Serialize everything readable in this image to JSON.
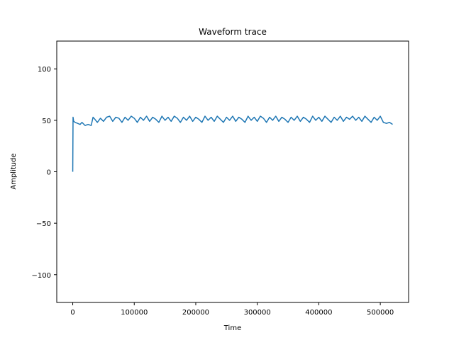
{
  "chart_data": {
    "type": "line",
    "title": "Waveform trace",
    "xlabel": "Time",
    "ylabel": "Amplitude",
    "xlim": [
      -26000,
      546000
    ],
    "ylim": [
      -127,
      127
    ],
    "grid": false,
    "x_ticks": [
      0,
      100000,
      200000,
      300000,
      400000,
      500000
    ],
    "x_tick_labels": [
      "0",
      "100000",
      "200000",
      "300000",
      "400000",
      "500000"
    ],
    "y_ticks": [
      -100,
      -50,
      0,
      50,
      100
    ],
    "y_tick_labels": [
      "−100",
      "−50",
      "0",
      "50",
      "100"
    ],
    "series": [
      {
        "color": "#1f77b4",
        "x": [
          0,
          500,
          1500,
          4000,
          8000,
          12000,
          15000,
          20000,
          25000,
          30000,
          33000,
          36000,
          40000,
          45000,
          50000,
          55000,
          60000,
          65000,
          70000,
          75000,
          80000,
          85000,
          90000,
          95000,
          100000,
          105000,
          110000,
          115000,
          120000,
          125000,
          130000,
          135000,
          140000,
          145000,
          150000,
          155000,
          160000,
          165000,
          170000,
          175000,
          180000,
          185000,
          190000,
          195000,
          200000,
          205000,
          210000,
          215000,
          220000,
          225000,
          230000,
          235000,
          240000,
          245000,
          250000,
          255000,
          260000,
          265000,
          270000,
          275000,
          280000,
          285000,
          290000,
          295000,
          300000,
          305000,
          310000,
          315000,
          320000,
          325000,
          330000,
          335000,
          340000,
          345000,
          350000,
          355000,
          360000,
          365000,
          370000,
          375000,
          380000,
          385000,
          390000,
          395000,
          400000,
          405000,
          410000,
          415000,
          420000,
          425000,
          430000,
          435000,
          440000,
          445000,
          450000,
          455000,
          460000,
          465000,
          470000,
          475000,
          480000,
          485000,
          490000,
          495000,
          500000,
          505000,
          510000,
          515000,
          520000
        ],
        "y": [
          0,
          53,
          49,
          48,
          47,
          46,
          48,
          45,
          46,
          45,
          53,
          51,
          48,
          52,
          49,
          53,
          54,
          49,
          53,
          52,
          48,
          53,
          50,
          54,
          52,
          48,
          53,
          50,
          54,
          49,
          53,
          51,
          48,
          54,
          50,
          53,
          49,
          54,
          52,
          48,
          53,
          50,
          54,
          49,
          53,
          51,
          48,
          54,
          50,
          53,
          49,
          54,
          51,
          48,
          53,
          50,
          54,
          49,
          53,
          51,
          48,
          54,
          50,
          53,
          49,
          54,
          52,
          48,
          53,
          50,
          54,
          49,
          53,
          51,
          48,
          53,
          50,
          54,
          49,
          53,
          51,
          48,
          54,
          50,
          53,
          49,
          54,
          51,
          48,
          53,
          50,
          54,
          49,
          53,
          51,
          54,
          50,
          53,
          49,
          54,
          51,
          48,
          53,
          50,
          54,
          48,
          47,
          48,
          46
        ]
      }
    ]
  }
}
